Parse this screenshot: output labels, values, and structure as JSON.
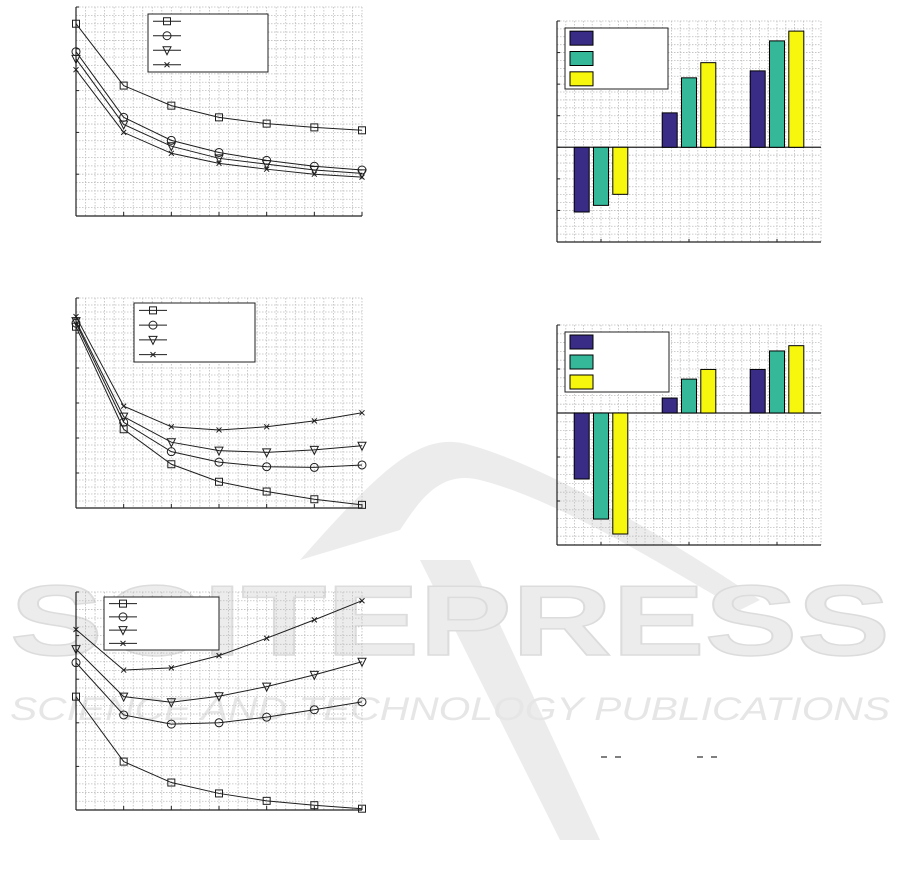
{
  "watermark": {
    "title": "SCITEPRESS",
    "subtitle": "SCIENCE AND TECHNOLOGY PUBLICATIONS",
    "color": "#e3e3e3"
  },
  "colors": {
    "line": "#1e1e1e",
    "grid": "#bdbdbd",
    "bar_series": [
      "#392c86",
      "#35b89a",
      "#f7f70e"
    ]
  },
  "chart_data": [
    {
      "type": "line",
      "ylim": [
        0,
        5
      ],
      "grid": true,
      "legend": "top-center",
      "series": [
        {
          "marker": "square",
          "values": [
            4.6,
            3.12,
            2.64,
            2.36,
            2.21,
            2.12,
            2.05
          ]
        },
        {
          "marker": "circle",
          "values": [
            3.93,
            2.36,
            1.81,
            1.52,
            1.33,
            1.19,
            1.1
          ]
        },
        {
          "marker": "triangle-down",
          "values": [
            3.76,
            2.19,
            1.67,
            1.38,
            1.24,
            1.1,
            1.02
          ]
        },
        {
          "marker": "x",
          "values": [
            3.5,
            2.0,
            1.5,
            1.26,
            1.12,
            1.0,
            0.93
          ]
        }
      ]
    },
    {
      "type": "line",
      "ylim": [
        0,
        6
      ],
      "grid": true,
      "legend": "top-center",
      "series": [
        {
          "marker": "square",
          "values": [
            5.18,
            2.25,
            1.25,
            0.75,
            0.47,
            0.25,
            0.09
          ]
        },
        {
          "marker": "circle",
          "values": [
            5.28,
            2.45,
            1.61,
            1.31,
            1.18,
            1.16,
            1.23
          ]
        },
        {
          "marker": "triangle-down",
          "values": [
            5.34,
            2.61,
            1.88,
            1.64,
            1.59,
            1.66,
            1.78
          ]
        },
        {
          "marker": "x",
          "values": [
            5.47,
            2.91,
            2.32,
            2.23,
            2.32,
            2.49,
            2.72
          ]
        }
      ]
    },
    {
      "type": "line",
      "ylim": [
        0,
        5
      ],
      "grid": true,
      "legend": "top-left",
      "series": [
        {
          "marker": "square",
          "values": [
            2.6,
            1.11,
            0.63,
            0.38,
            0.21,
            0.11,
            0.03
          ]
        },
        {
          "marker": "circle",
          "values": [
            3.38,
            2.18,
            1.97,
            2.0,
            2.13,
            2.3,
            2.48
          ]
        },
        {
          "marker": "triangle-down",
          "values": [
            3.69,
            2.6,
            2.47,
            2.61,
            2.83,
            3.1,
            3.4
          ]
        },
        {
          "marker": "x",
          "values": [
            4.14,
            3.21,
            3.26,
            3.54,
            3.94,
            4.36,
            4.8
          ]
        }
      ]
    },
    {
      "type": "bar",
      "ylim": [
        -3,
        4
      ],
      "grid": true,
      "legend": "top-left",
      "groups": 3,
      "series": [
        {
          "color": "#392c86",
          "values": [
            -2.05,
            1.09,
            2.42
          ]
        },
        {
          "color": "#35b89a",
          "values": [
            -1.84,
            2.2,
            3.37
          ]
        },
        {
          "color": "#f7f70e",
          "values": [
            -1.49,
            2.68,
            3.68
          ]
        }
      ]
    },
    {
      "type": "bar",
      "ylim": [
        -3,
        2
      ],
      "grid": true,
      "legend": "top-left",
      "groups": 3,
      "series": [
        {
          "color": "#392c86",
          "values": [
            -1.5,
            0.34,
            0.99
          ]
        },
        {
          "color": "#35b89a",
          "values": [
            -2.41,
            0.77,
            1.41
          ]
        },
        {
          "color": "#f7f70e",
          "values": [
            -2.75,
            0.99,
            1.53
          ]
        }
      ]
    }
  ]
}
